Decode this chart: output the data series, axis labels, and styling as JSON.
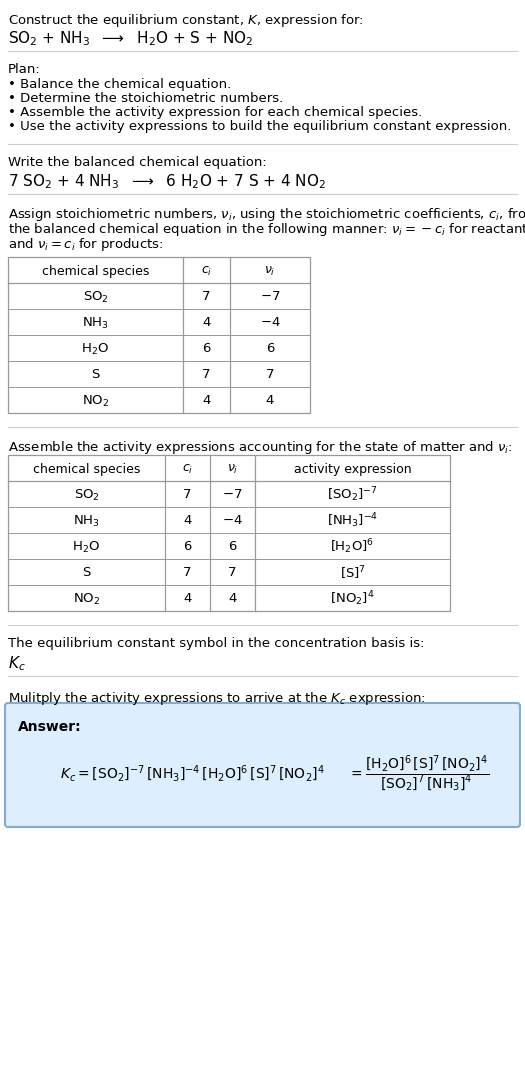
{
  "title_line1": "Construct the equilibrium constant, $K$, expression for:",
  "reaction_unbalanced": "SO$_2$ + NH$_3$  $\\longrightarrow$  H$_2$O + S + NO$_2$",
  "plan_header": "Plan:",
  "plan_items": [
    "• Balance the chemical equation.",
    "• Determine the stoichiometric numbers.",
    "• Assemble the activity expression for each chemical species.",
    "• Use the activity expressions to build the equilibrium constant expression."
  ],
  "balanced_header": "Write the balanced chemical equation:",
  "reaction_balanced": "7 SO$_2$ + 4 NH$_3$  $\\longrightarrow$  6 H$_2$O + 7 S + 4 NO$_2$",
  "stoich_header_lines": [
    "Assign stoichiometric numbers, $\\nu_i$, using the stoichiometric coefficients, $c_i$, from",
    "the balanced chemical equation in the following manner: $\\nu_i = -c_i$ for reactants",
    "and $\\nu_i = c_i$ for products:"
  ],
  "table1_headers": [
    "chemical species",
    "$c_i$",
    "$\\nu_i$"
  ],
  "table1_rows": [
    [
      "SO$_2$",
      "7",
      "$-7$"
    ],
    [
      "NH$_3$",
      "4",
      "$-4$"
    ],
    [
      "H$_2$O",
      "6",
      "6"
    ],
    [
      "S",
      "7",
      "7"
    ],
    [
      "NO$_2$",
      "4",
      "4"
    ]
  ],
  "activity_header": "Assemble the activity expressions accounting for the state of matter and $\\nu_i$:",
  "table2_headers": [
    "chemical species",
    "$c_i$",
    "$\\nu_i$",
    "activity expression"
  ],
  "table2_rows": [
    [
      "SO$_2$",
      "7",
      "$-7$",
      "[SO$_2$]$^{-7}$"
    ],
    [
      "NH$_3$",
      "4",
      "$-4$",
      "[NH$_3$]$^{-4}$"
    ],
    [
      "H$_2$O",
      "6",
      "6",
      "[H$_2$O]$^{6}$"
    ],
    [
      "S",
      "7",
      "7",
      "[S]$^{7}$"
    ],
    [
      "NO$_2$",
      "4",
      "4",
      "[NO$_2$]$^{4}$"
    ]
  ],
  "kc_header": "The equilibrium constant symbol in the concentration basis is:",
  "kc_symbol": "$K_c$",
  "multiply_header": "Mulitply the activity expressions to arrive at the $K_c$ expression:",
  "answer_label": "Answer:",
  "bg_color": "#ffffff",
  "text_color": "#000000",
  "table_border_color": "#999999",
  "answer_box_color": "#ddeeff",
  "answer_box_border": "#88aacc",
  "sep_line_color": "#cccccc"
}
